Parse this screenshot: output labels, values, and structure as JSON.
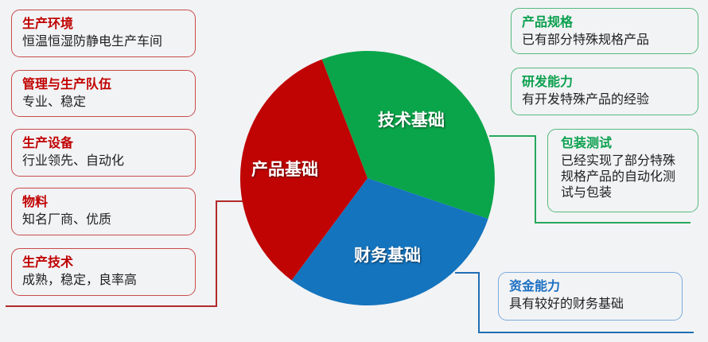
{
  "colors": {
    "background": "#f2f3f5",
    "red_accent": "#c00000",
    "red_border": "#c94b4b",
    "red_line": "#b02a2a",
    "green_accent": "#0ba04e",
    "green_border": "#54ba7e",
    "green_line": "#27a95c",
    "blue_accent": "#1b6fc2",
    "blue_border": "#7bacdd",
    "blue_line": "#1f6fb5",
    "body_text": "#1f1f1f",
    "pie_green": "#0aa54a",
    "pie_blue": "#1474be",
    "pie_red": "#c00404"
  },
  "left_boxes": [
    {
      "title": "生产环境",
      "desc": "恒温恒湿防静电生产车间"
    },
    {
      "title": "管理与生产队伍",
      "desc": "专业、稳定"
    },
    {
      "title": "生产设备",
      "desc": "行业领先、自动化"
    },
    {
      "title": "物料",
      "desc": "知名厂商、优质"
    },
    {
      "title": "生产技术",
      "desc": "成熟，稳定，良率高"
    }
  ],
  "right_boxes": [
    {
      "title": "产品规格",
      "desc": "已有部分特殊规格产品"
    },
    {
      "title": "研发能力",
      "desc": "有开发特殊产品的经验"
    },
    {
      "title": "包装测试",
      "desc": "已经实现了部分特殊规格产品的自动化测试与包装"
    },
    {
      "title": "资金能力",
      "desc": "具有较好的财务基础"
    }
  ],
  "chart_data": {
    "type": "pie",
    "labels": [
      "技术基础",
      "财务基础",
      "产品基础"
    ],
    "slice_names": [
      "tech-foundation",
      "finance-foundation",
      "product-foundation"
    ],
    "values_pct": [
      36,
      30,
      34
    ],
    "colors": [
      "#0aa54a",
      "#1474be",
      "#c00404"
    ],
    "start_angle_deg": -21,
    "legend_position": "none",
    "title": ""
  }
}
